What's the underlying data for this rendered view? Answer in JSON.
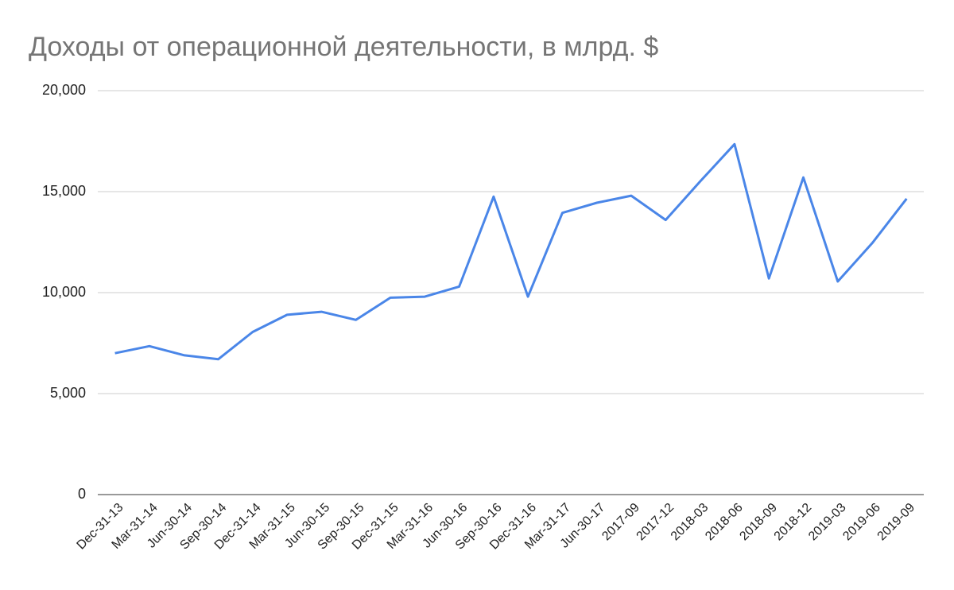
{
  "chart_data": {
    "type": "line",
    "title": "Доходы от операционной деятельности, в млрд. $",
    "categories": [
      "Dec-31-13",
      "Mar-31-14",
      "Jun-30-14",
      "Sep-30-14",
      "Dec-31-14",
      "Mar-31-15",
      "Jun-30-15",
      "Sep-30-15",
      "Dec-31-15",
      "Mar-31-16",
      "Jun-30-16",
      "Sep-30-16",
      "Dec-31-16",
      "Mar-31-17",
      "Jun-30-17",
      "2017-09",
      "2017-12",
      "2018-03",
      "2018-06",
      "2018-09",
      "2018-12",
      "2019-03",
      "2019-06",
      "2019-09"
    ],
    "values": [
      7000,
      7350,
      6900,
      6700,
      8050,
      8900,
      9050,
      8650,
      9750,
      9800,
      10300,
      14750,
      9800,
      13950,
      14450,
      14800,
      13600,
      15500,
      17350,
      10700,
      15700,
      10550,
      12450,
      14650
    ],
    "color": "#4a86e8",
    "ylim": [
      0,
      20000
    ],
    "yticks": [
      0,
      {
        "value": 5000,
        "label": "5,000"
      },
      {
        "value": 10000,
        "label": "10,000"
      },
      {
        "value": 15000,
        "label": "15,000"
      },
      {
        "value": 20000,
        "label": "20,000"
      }
    ],
    "grid": true
  }
}
